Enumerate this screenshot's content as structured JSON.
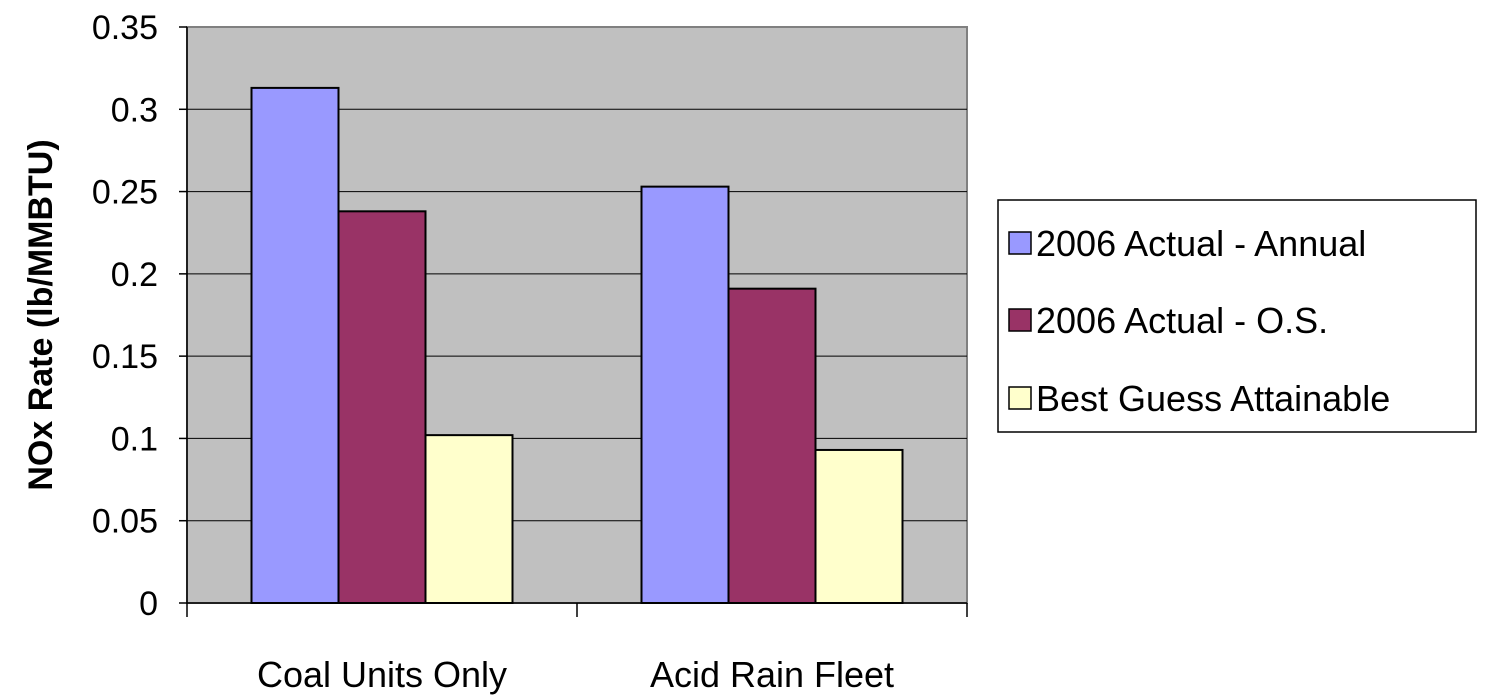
{
  "chart_data": {
    "type": "bar",
    "ylabel": "NOx Rate (lb/MMBTU)",
    "xlabel": "",
    "ylim": [
      0,
      0.35
    ],
    "yticks": [
      0,
      0.05,
      0.1,
      0.15,
      0.2,
      0.25,
      0.3,
      0.35
    ],
    "ytick_labels": [
      "0",
      "0.05",
      "0.1",
      "0.15",
      "0.2",
      "0.25",
      "0.3",
      "0.35"
    ],
    "categories": [
      "Coal Units Only",
      "Acid Rain Fleet"
    ],
    "series": [
      {
        "name": "2006 Actual - Annual",
        "values": [
          0.313,
          0.253
        ],
        "color": "#9999ff"
      },
      {
        "name": "2006 Actual - O.S.",
        "values": [
          0.238,
          0.191
        ],
        "color": "#993366"
      },
      {
        "name": "Best Guess Attainable",
        "values": [
          0.102,
          0.093
        ],
        "color": "#ffffcc"
      }
    ],
    "grid": true,
    "legend": "right",
    "plot_background": "#c0c0c0"
  }
}
